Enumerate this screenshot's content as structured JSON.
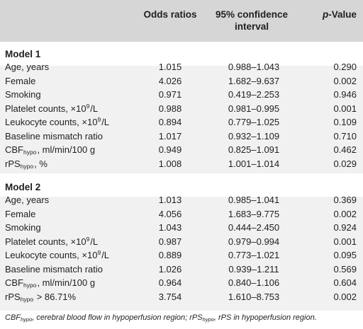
{
  "header": {
    "col_or": "Odds ratios",
    "col_ci_line1": "95% confidence",
    "col_ci_line2": "interval",
    "col_p_italic": "p",
    "col_p_rest": "-Value"
  },
  "model1": {
    "title": "Model 1",
    "rows": [
      {
        "label": "Age, years",
        "sub": "",
        "sup": "",
        "suffix": "",
        "or": "1.015",
        "ci": "0.988–1.043",
        "p": "0.290"
      },
      {
        "label": "Female",
        "sub": "",
        "sup": "",
        "suffix": "",
        "or": "4.026",
        "ci": "1.682–9.637",
        "p": "0.002"
      },
      {
        "label": "Smoking",
        "sub": "",
        "sup": "",
        "suffix": "",
        "or": "0.971",
        "ci": "0.419–2.253",
        "p": "0.946"
      },
      {
        "label": "Platelet counts, ×10",
        "sub": "",
        "sup": "9",
        "suffix": "/L",
        "or": "0.988",
        "ci": "0.981–0.995",
        "p": "0.001"
      },
      {
        "label": "Leukocyte counts, ×10",
        "sub": "",
        "sup": "9",
        "suffix": "/L",
        "or": "0.894",
        "ci": "0.779–1.025",
        "p": "0.109"
      },
      {
        "label": "Baseline mismatch ratio",
        "sub": "",
        "sup": "",
        "suffix": "",
        "or": "1.017",
        "ci": "0.932–1.109",
        "p": "0.710"
      },
      {
        "label": "CBF",
        "sub": "hypo",
        "sup": "",
        "suffix": ", ml/min/100 g",
        "or": "0.949",
        "ci": "0.825–1.091",
        "p": "0.462"
      },
      {
        "label": "rPS",
        "sub": "hypo",
        "sup": "",
        "suffix": ", %",
        "or": "1.008",
        "ci": "1.001–1.014",
        "p": "0.029"
      }
    ]
  },
  "model2": {
    "title": "Model 2",
    "rows": [
      {
        "label": "Age, years",
        "sub": "",
        "sup": "",
        "suffix": "",
        "or": "1.013",
        "ci": "0.985–1.041",
        "p": "0.369"
      },
      {
        "label": "Female",
        "sub": "",
        "sup": "",
        "suffix": "",
        "or": "4.056",
        "ci": "1.683–9.775",
        "p": "0.002"
      },
      {
        "label": "Smoking",
        "sub": "",
        "sup": "",
        "suffix": "",
        "or": "1.043",
        "ci": "0.444–2.450",
        "p": "0.924"
      },
      {
        "label": "Platelet counts, ×10",
        "sub": "",
        "sup": "9",
        "suffix": "/L",
        "or": "0.987",
        "ci": "0.979–0.994",
        "p": "0.001"
      },
      {
        "label": "Leukocyte counts, ×10",
        "sub": "",
        "sup": "9",
        "suffix": "/L",
        "or": "0.889",
        "ci": "0.773–1.021",
        "p": "0.095"
      },
      {
        "label": "Baseline mismatch ratio",
        "sub": "",
        "sup": "",
        "suffix": "",
        "or": "1.026",
        "ci": "0.939–1.211",
        "p": "0.569"
      },
      {
        "label": "CBF",
        "sub": "hypo",
        "sup": "",
        "suffix": ", ml/min/100 g",
        "or": "0.964",
        "ci": "0.840–1.106",
        "p": "0.604"
      },
      {
        "label": "rPS",
        "sub": "hypo",
        "sup": "",
        "suffix": " > 86.71%",
        "or": "3.754",
        "ci": "1.610–8.753",
        "p": "0.002"
      }
    ]
  },
  "footnote": {
    "part1": "CBF",
    "sub1": "hypo",
    "part2": ", cerebral blood flow in hypoperfusion region; rPS",
    "sub2": "hypo",
    "part3": ", rPS in hypoperfusion region."
  }
}
